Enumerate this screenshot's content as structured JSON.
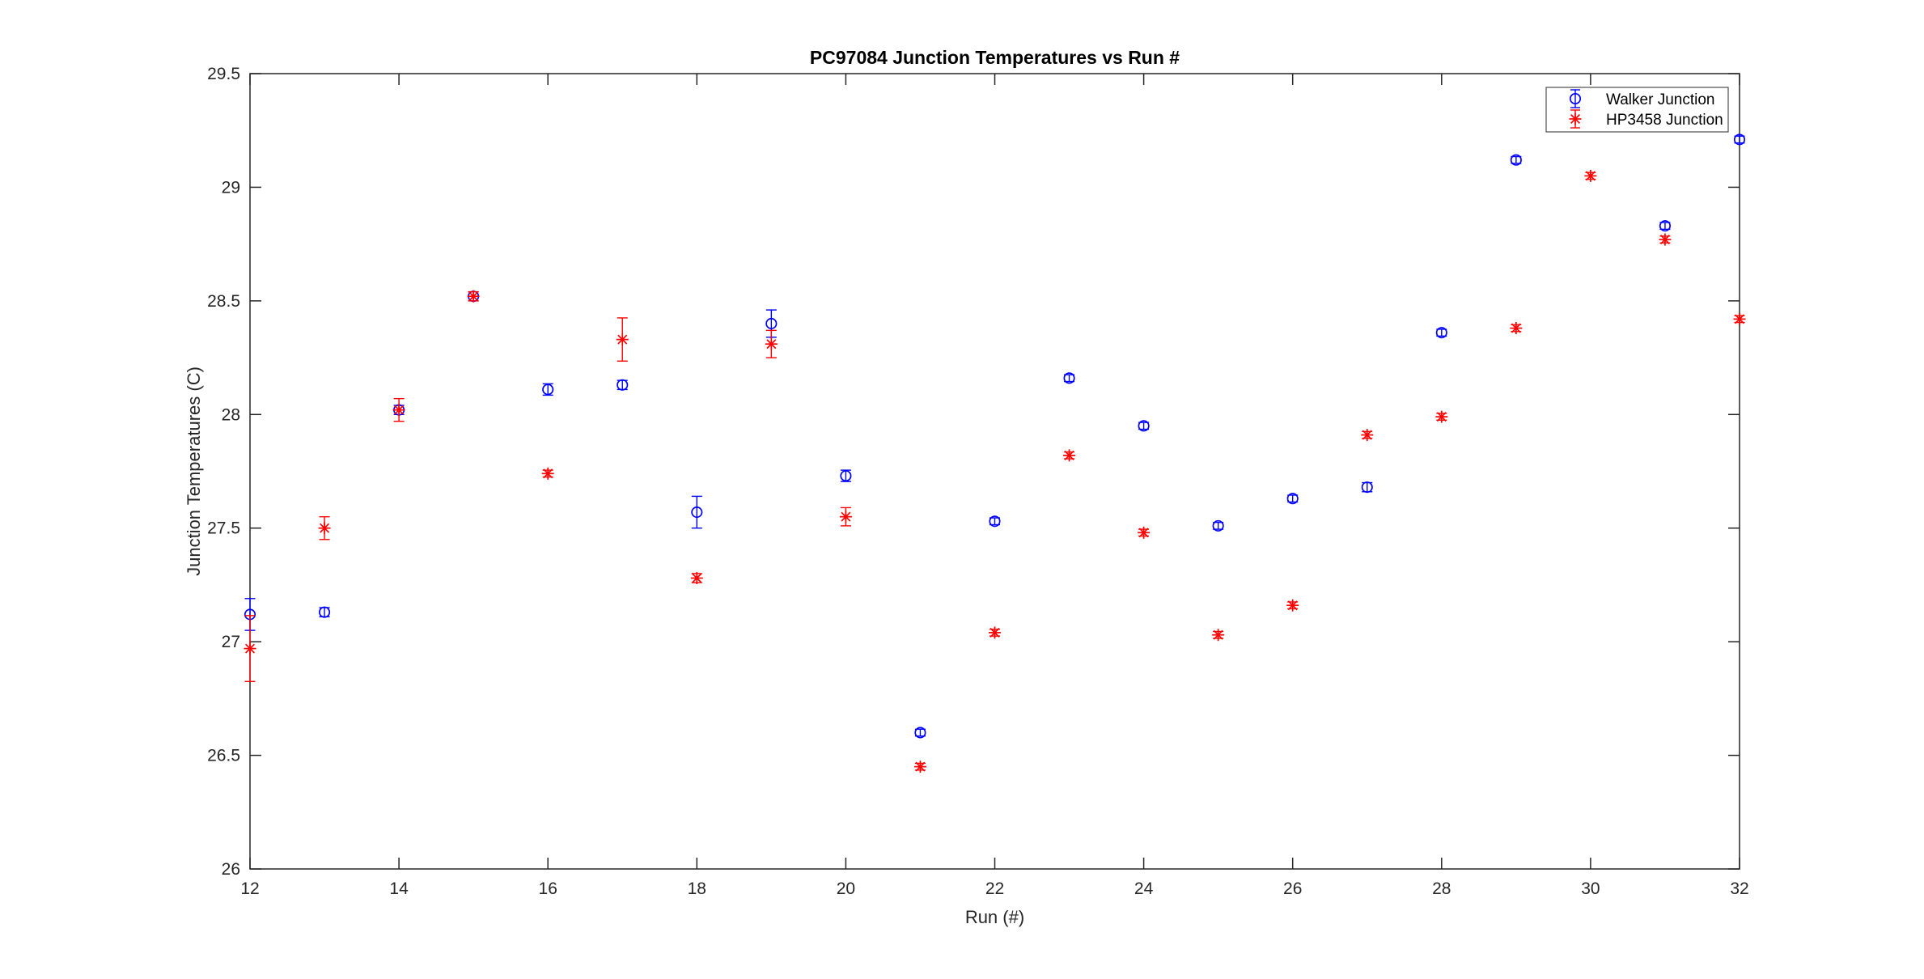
{
  "figure": {
    "background": "#ffffff",
    "axis_color": "#262626"
  },
  "chart_data": {
    "type": "scatter",
    "title": "PC97084 Junction Temperatures vs Run #",
    "xlabel": "Run (#)",
    "ylabel": "Junction Temperatures (C)",
    "xlim": [
      12,
      32
    ],
    "ylim": [
      26,
      29.5
    ],
    "xticks": [
      12,
      14,
      16,
      18,
      20,
      22,
      24,
      26,
      28,
      30,
      32
    ],
    "xtick_labels": [
      "12",
      "14",
      "16",
      "18",
      "20",
      "22",
      "24",
      "26",
      "28",
      "30",
      "32"
    ],
    "yticks": [
      26,
      26.5,
      27,
      27.5,
      28,
      28.5,
      29,
      29.5
    ],
    "ytick_labels": [
      "26",
      "26.5",
      "27",
      "27.5",
      "28",
      "28.5",
      "29",
      "29.5"
    ],
    "grid": false,
    "legend": {
      "position": "top-right",
      "entries": [
        "Walker Junction",
        "HP3458 Junction"
      ]
    },
    "series": [
      {
        "name": "Walker Junction",
        "color": "#0000ff",
        "marker": "circle",
        "points": [
          {
            "x": 12,
            "y": 27.12,
            "err": 0.07
          },
          {
            "x": 13,
            "y": 27.13,
            "err": 0.02
          },
          {
            "x": 14,
            "y": 28.02,
            "err": 0.02
          },
          {
            "x": 15,
            "y": 28.52,
            "err": 0.02
          },
          {
            "x": 16,
            "y": 28.11,
            "err": 0.025
          },
          {
            "x": 17,
            "y": 28.13,
            "err": 0.02
          },
          {
            "x": 18,
            "y": 27.57,
            "err": 0.07
          },
          {
            "x": 19,
            "y": 28.4,
            "err": 0.06
          },
          {
            "x": 20,
            "y": 27.73,
            "err": 0.025
          },
          {
            "x": 21,
            "y": 26.6,
            "err": 0.015
          },
          {
            "x": 22,
            "y": 27.53,
            "err": 0.015
          },
          {
            "x": 23,
            "y": 28.16,
            "err": 0.015
          },
          {
            "x": 24,
            "y": 27.95,
            "err": 0.015
          },
          {
            "x": 25,
            "y": 27.51,
            "err": 0.015
          },
          {
            "x": 26,
            "y": 27.63,
            "err": 0.015
          },
          {
            "x": 27,
            "y": 27.68,
            "err": 0.02
          },
          {
            "x": 28,
            "y": 28.36,
            "err": 0.015
          },
          {
            "x": 29,
            "y": 29.12,
            "err": 0.015
          },
          {
            "x": 31,
            "y": 28.83,
            "err": 0.015
          },
          {
            "x": 32,
            "y": 29.21,
            "err": 0.015
          }
        ]
      },
      {
        "name": "HP3458 Junction",
        "color": "#ff0000",
        "marker": "asterisk",
        "points": [
          {
            "x": 12,
            "y": 26.97,
            "err": 0.145
          },
          {
            "x": 13,
            "y": 27.5,
            "err": 0.05
          },
          {
            "x": 14,
            "y": 28.02,
            "err": 0.05
          },
          {
            "x": 15,
            "y": 28.52,
            "err": 0.02
          },
          {
            "x": 16,
            "y": 27.74,
            "err": 0.015
          },
          {
            "x": 17,
            "y": 28.33,
            "err": 0.095
          },
          {
            "x": 18,
            "y": 27.28,
            "err": 0.02
          },
          {
            "x": 19,
            "y": 28.31,
            "err": 0.06
          },
          {
            "x": 20,
            "y": 27.55,
            "err": 0.04
          },
          {
            "x": 21,
            "y": 26.45,
            "err": 0.015
          },
          {
            "x": 22,
            "y": 27.04,
            "err": 0.015
          },
          {
            "x": 23,
            "y": 27.82,
            "err": 0.015
          },
          {
            "x": 24,
            "y": 27.48,
            "err": 0.015
          },
          {
            "x": 25,
            "y": 27.03,
            "err": 0.015
          },
          {
            "x": 26,
            "y": 27.16,
            "err": 0.015
          },
          {
            "x": 27,
            "y": 27.91,
            "err": 0.015
          },
          {
            "x": 28,
            "y": 27.99,
            "err": 0.015
          },
          {
            "x": 29,
            "y": 28.38,
            "err": 0.015
          },
          {
            "x": 30,
            "y": 29.05,
            "err": 0.015
          },
          {
            "x": 31,
            "y": 28.77,
            "err": 0.015
          },
          {
            "x": 32,
            "y": 28.42,
            "err": 0.015
          }
        ]
      }
    ]
  }
}
